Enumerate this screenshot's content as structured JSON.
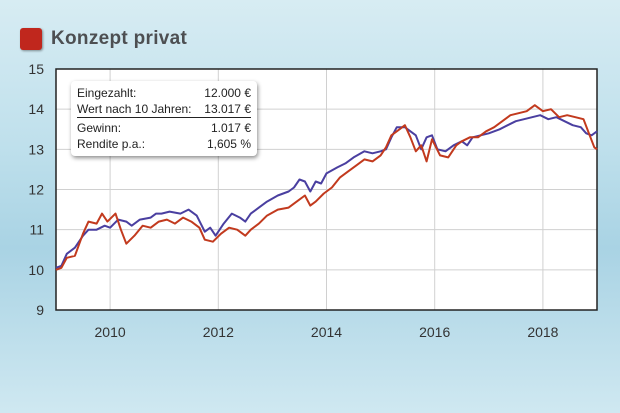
{
  "header": {
    "title": "Konzept privat",
    "square_color": "#c0271d"
  },
  "info_box": {
    "rows": [
      {
        "label": "Eingezahlt:",
        "value": "12.000 €"
      },
      {
        "label": "Wert nach 10 Jahren:",
        "value": "13.017 €"
      },
      {
        "label": "Gewinn:",
        "value": "1.017 €"
      },
      {
        "label": "Rendite p.a.:",
        "value": "1,605 %"
      }
    ]
  },
  "chart_data": {
    "type": "line",
    "xlim": [
      2009.0,
      2019.0
    ],
    "ylim": [
      9,
      15
    ],
    "x_ticks": [
      2010,
      2012,
      2014,
      2016,
      2018
    ],
    "y_ticks": [
      9,
      10,
      11,
      12,
      13,
      14,
      15
    ],
    "grid": true,
    "series": [
      {
        "color": "#4a3fa0",
        "points": [
          [
            2009.0,
            10.05
          ],
          [
            2009.1,
            10.1
          ],
          [
            2009.2,
            10.4
          ],
          [
            2009.35,
            10.55
          ],
          [
            2009.5,
            10.85
          ],
          [
            2009.6,
            11.0
          ],
          [
            2009.75,
            11.0
          ],
          [
            2009.9,
            11.1
          ],
          [
            2010.0,
            11.05
          ],
          [
            2010.15,
            11.25
          ],
          [
            2010.3,
            11.2
          ],
          [
            2010.4,
            11.1
          ],
          [
            2010.55,
            11.25
          ],
          [
            2010.75,
            11.3
          ],
          [
            2010.85,
            11.4
          ],
          [
            2010.95,
            11.4
          ],
          [
            2011.1,
            11.45
          ],
          [
            2011.3,
            11.4
          ],
          [
            2011.45,
            11.5
          ],
          [
            2011.6,
            11.35
          ],
          [
            2011.75,
            10.95
          ],
          [
            2011.85,
            11.05
          ],
          [
            2011.95,
            10.85
          ],
          [
            2012.1,
            11.15
          ],
          [
            2012.25,
            11.4
          ],
          [
            2012.4,
            11.3
          ],
          [
            2012.5,
            11.2
          ],
          [
            2012.6,
            11.4
          ],
          [
            2012.75,
            11.55
          ],
          [
            2012.9,
            11.7
          ],
          [
            2013.1,
            11.85
          ],
          [
            2013.3,
            11.95
          ],
          [
            2013.4,
            12.05
          ],
          [
            2013.5,
            12.25
          ],
          [
            2013.6,
            12.2
          ],
          [
            2013.7,
            11.95
          ],
          [
            2013.8,
            12.2
          ],
          [
            2013.9,
            12.15
          ],
          [
            2014.0,
            12.4
          ],
          [
            2014.2,
            12.55
          ],
          [
            2014.35,
            12.65
          ],
          [
            2014.5,
            12.8
          ],
          [
            2014.7,
            12.95
          ],
          [
            2014.85,
            12.9
          ],
          [
            2015.0,
            12.95
          ],
          [
            2015.1,
            13.0
          ],
          [
            2015.2,
            13.3
          ],
          [
            2015.3,
            13.55
          ],
          [
            2015.45,
            13.55
          ],
          [
            2015.55,
            13.45
          ],
          [
            2015.65,
            13.35
          ],
          [
            2015.75,
            13.0
          ],
          [
            2015.85,
            13.3
          ],
          [
            2015.95,
            13.35
          ],
          [
            2016.05,
            13.0
          ],
          [
            2016.2,
            12.95
          ],
          [
            2016.35,
            13.1
          ],
          [
            2016.5,
            13.2
          ],
          [
            2016.6,
            13.1
          ],
          [
            2016.7,
            13.3
          ],
          [
            2016.85,
            13.35
          ],
          [
            2017.0,
            13.4
          ],
          [
            2017.2,
            13.5
          ],
          [
            2017.35,
            13.6
          ],
          [
            2017.5,
            13.7
          ],
          [
            2017.65,
            13.75
          ],
          [
            2017.8,
            13.8
          ],
          [
            2017.95,
            13.85
          ],
          [
            2018.1,
            13.75
          ],
          [
            2018.25,
            13.8
          ],
          [
            2018.4,
            13.7
          ],
          [
            2018.55,
            13.6
          ],
          [
            2018.7,
            13.55
          ],
          [
            2018.8,
            13.4
          ],
          [
            2018.9,
            13.35
          ],
          [
            2019.0,
            13.45
          ]
        ]
      },
      {
        "color": "#c23a1e",
        "points": [
          [
            2009.0,
            10.0
          ],
          [
            2009.1,
            10.05
          ],
          [
            2009.2,
            10.3
          ],
          [
            2009.35,
            10.35
          ],
          [
            2009.5,
            10.9
          ],
          [
            2009.6,
            11.2
          ],
          [
            2009.75,
            11.15
          ],
          [
            2009.85,
            11.4
          ],
          [
            2009.95,
            11.2
          ],
          [
            2010.1,
            11.4
          ],
          [
            2010.2,
            11.0
          ],
          [
            2010.3,
            10.65
          ],
          [
            2010.45,
            10.85
          ],
          [
            2010.6,
            11.1
          ],
          [
            2010.75,
            11.05
          ],
          [
            2010.9,
            11.2
          ],
          [
            2011.05,
            11.25
          ],
          [
            2011.2,
            11.15
          ],
          [
            2011.35,
            11.3
          ],
          [
            2011.5,
            11.2
          ],
          [
            2011.65,
            11.05
          ],
          [
            2011.75,
            10.75
          ],
          [
            2011.9,
            10.7
          ],
          [
            2012.05,
            10.9
          ],
          [
            2012.2,
            11.05
          ],
          [
            2012.35,
            11.0
          ],
          [
            2012.5,
            10.85
          ],
          [
            2012.6,
            11.0
          ],
          [
            2012.75,
            11.15
          ],
          [
            2012.9,
            11.35
          ],
          [
            2013.1,
            11.5
          ],
          [
            2013.3,
            11.55
          ],
          [
            2013.45,
            11.7
          ],
          [
            2013.6,
            11.85
          ],
          [
            2013.7,
            11.6
          ],
          [
            2013.8,
            11.7
          ],
          [
            2013.95,
            11.9
          ],
          [
            2014.1,
            12.05
          ],
          [
            2014.25,
            12.3
          ],
          [
            2014.4,
            12.45
          ],
          [
            2014.55,
            12.6
          ],
          [
            2014.7,
            12.75
          ],
          [
            2014.85,
            12.7
          ],
          [
            2015.0,
            12.85
          ],
          [
            2015.1,
            13.05
          ],
          [
            2015.2,
            13.35
          ],
          [
            2015.35,
            13.5
          ],
          [
            2015.45,
            13.6
          ],
          [
            2015.55,
            13.3
          ],
          [
            2015.65,
            12.95
          ],
          [
            2015.75,
            13.1
          ],
          [
            2015.85,
            12.7
          ],
          [
            2015.95,
            13.25
          ],
          [
            2016.1,
            12.85
          ],
          [
            2016.25,
            12.8
          ],
          [
            2016.4,
            13.1
          ],
          [
            2016.5,
            13.2
          ],
          [
            2016.65,
            13.3
          ],
          [
            2016.8,
            13.3
          ],
          [
            2016.95,
            13.45
          ],
          [
            2017.1,
            13.55
          ],
          [
            2017.25,
            13.7
          ],
          [
            2017.4,
            13.85
          ],
          [
            2017.55,
            13.9
          ],
          [
            2017.7,
            13.95
          ],
          [
            2017.85,
            14.1
          ],
          [
            2018.0,
            13.95
          ],
          [
            2018.15,
            14.0
          ],
          [
            2018.3,
            13.8
          ],
          [
            2018.45,
            13.85
          ],
          [
            2018.6,
            13.8
          ],
          [
            2018.75,
            13.75
          ],
          [
            2018.85,
            13.4
          ],
          [
            2018.95,
            13.05
          ],
          [
            2019.0,
            13.0
          ]
        ]
      }
    ]
  }
}
